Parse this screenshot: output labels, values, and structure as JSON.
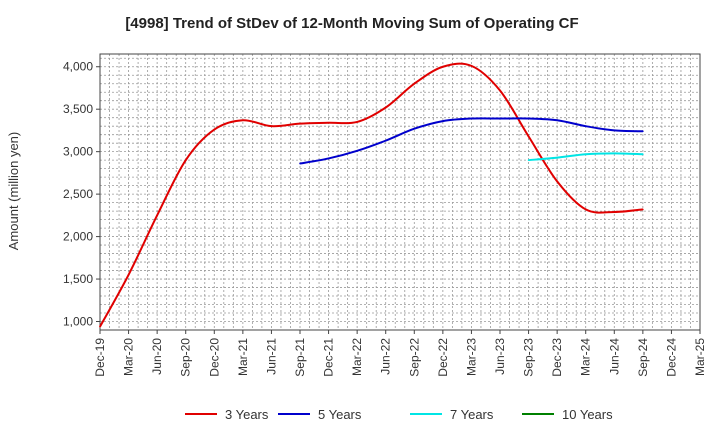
{
  "chart_data": {
    "type": "line",
    "title": "[4998]  Trend of StDev of 12-Month Moving Sum of Operating CF",
    "xlabel": "",
    "ylabel": "Amount (million yen)",
    "ylim": [
      900,
      4150
    ],
    "yticks": [
      1000,
      1500,
      2000,
      2500,
      3000,
      3500,
      4000
    ],
    "ytick_labels": [
      "1,000",
      "1,500",
      "2,000",
      "2,500",
      "3,000",
      "3,500",
      "4,000"
    ],
    "categories": [
      "Dec-19",
      "Mar-20",
      "Jun-20",
      "Sep-20",
      "Dec-20",
      "Mar-21",
      "Jun-21",
      "Sep-21",
      "Dec-21",
      "Mar-22",
      "Jun-22",
      "Sep-22",
      "Dec-22",
      "Mar-23",
      "Jun-23",
      "Sep-23",
      "Dec-23",
      "Mar-24",
      "Jun-24",
      "Sep-24",
      "Dec-24",
      "Mar-25"
    ],
    "grid": true,
    "legend_position": "bottom",
    "series": [
      {
        "name": "3 Years",
        "color": "#e00000",
        "values": [
          940,
          1550,
          2250,
          2900,
          3260,
          3370,
          3300,
          3330,
          3340,
          3350,
          3520,
          3800,
          4000,
          4010,
          3720,
          3180,
          2650,
          2320,
          2290,
          2320,
          null,
          null
        ]
      },
      {
        "name": "5 Years",
        "color": "#0000cc",
        "values": [
          null,
          null,
          null,
          null,
          null,
          null,
          null,
          2860,
          2920,
          3010,
          3130,
          3270,
          3360,
          3390,
          3390,
          3390,
          3370,
          3300,
          3250,
          3240,
          null,
          null
        ]
      },
      {
        "name": "7 Years",
        "color": "#00e5e5",
        "values": [
          null,
          null,
          null,
          null,
          null,
          null,
          null,
          null,
          null,
          null,
          null,
          null,
          null,
          null,
          null,
          2900,
          2930,
          2970,
          2980,
          2970,
          null,
          null
        ]
      },
      {
        "name": "10 Years",
        "color": "#008000",
        "values": [
          null,
          null,
          null,
          null,
          null,
          null,
          null,
          null,
          null,
          null,
          null,
          null,
          null,
          null,
          null,
          null,
          null,
          null,
          null,
          null,
          null,
          null
        ]
      }
    ]
  }
}
